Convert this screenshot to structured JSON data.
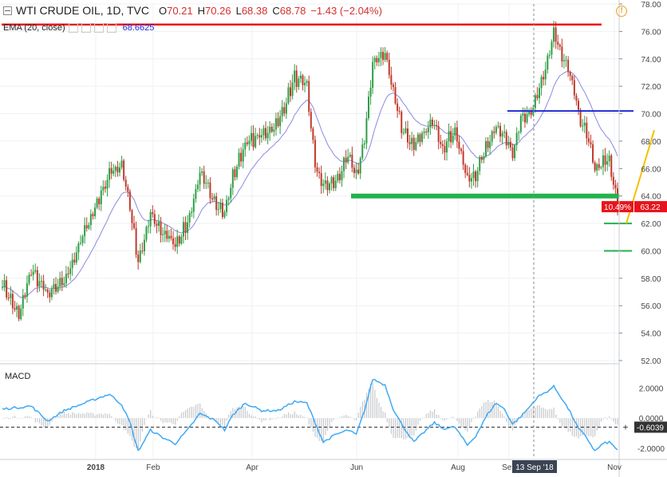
{
  "header": {
    "symbol": "WTI CRUDE OIL, 1D, TVC",
    "open_label": "O",
    "open": "70.21",
    "high_label": "H",
    "high": "70.26",
    "low_label": "L",
    "low": "68.38",
    "close_label": "C",
    "close": "68.78",
    "change": "−1.43 (−2.04%)"
  },
  "ema": {
    "label": "EMA (20, close)",
    "value": "68.6625"
  },
  "macd": {
    "label": "MACD"
  },
  "colors": {
    "up": "#2e9e44",
    "down": "#c0392b",
    "ema": "#8a8ae0",
    "macd": "#3fa9f5",
    "red_line": "#e8141b",
    "blue_line": "#1e2bd6",
    "green_line": "#22b24c",
    "yellow_line": "#f5c000",
    "percent_label": "#e8141b"
  },
  "icons": [
    "alert-icon",
    "collapse-icon"
  ],
  "crosshair_date": "13 Sep '18",
  "price_label": "63.22",
  "percent_label": "10.49%",
  "macd_value": "-0.6039",
  "chart_data": {
    "type": "candlestick",
    "title": "WTI CRUDE OIL, 1D, TVC",
    "x_ticks": [
      "2018",
      "Feb",
      "Apr",
      "Jun",
      "Aug",
      "Sep",
      "Nov"
    ],
    "y_ticks": [
      "52.00",
      "54.00",
      "56.00",
      "58.00",
      "60.00",
      "62.00",
      "64.00",
      "66.00",
      "68.00",
      "70.00",
      "72.00",
      "74.00",
      "76.00",
      "78.00"
    ],
    "ylim": [
      52,
      78
    ],
    "macd_ticks": [
      "2.0000",
      "0.0000",
      "-2.0000"
    ],
    "macd_ylim": [
      -2.7,
      3.3
    ],
    "waypoints": [
      [
        0,
        57.6
      ],
      [
        8,
        55.2
      ],
      [
        14,
        58.6
      ],
      [
        22,
        56.8
      ],
      [
        30,
        57.7
      ],
      [
        40,
        61.4
      ],
      [
        52,
        65.6
      ],
      [
        58,
        66.3
      ],
      [
        62,
        63.2
      ],
      [
        66,
        59.0
      ],
      [
        72,
        62.6
      ],
      [
        78,
        61.3
      ],
      [
        84,
        60.5
      ],
      [
        90,
        62.0
      ],
      [
        96,
        65.5
      ],
      [
        104,
        63.5
      ],
      [
        108,
        62.7
      ],
      [
        112,
        65.4
      ],
      [
        118,
        67.8
      ],
      [
        126,
        68.4
      ],
      [
        134,
        69.3
      ],
      [
        142,
        72.6
      ],
      [
        148,
        71.9
      ],
      [
        152,
        66.2
      ],
      [
        156,
        64.7
      ],
      [
        162,
        65.0
      ],
      [
        168,
        66.8
      ],
      [
        172,
        65.5
      ],
      [
        176,
        68.0
      ],
      [
        180,
        73.8
      ],
      [
        186,
        74.3
      ],
      [
        190,
        71.7
      ],
      [
        194,
        69.0
      ],
      [
        200,
        67.5
      ],
      [
        206,
        68.8
      ],
      [
        210,
        69.4
      ],
      [
        214,
        67.5
      ],
      [
        220,
        68.8
      ],
      [
        226,
        65.1
      ],
      [
        230,
        65.6
      ],
      [
        236,
        67.8
      ],
      [
        240,
        69.2
      ],
      [
        244,
        68.3
      ],
      [
        248,
        67.1
      ],
      [
        252,
        69.9
      ],
      [
        256,
        69.7
      ],
      [
        260,
        71.2
      ],
      [
        264,
        73.3
      ],
      [
        268,
        75.9
      ],
      [
        272,
        74.0
      ],
      [
        276,
        72.8
      ],
      [
        280,
        70.0
      ],
      [
        284,
        68.4
      ],
      [
        288,
        66.0
      ],
      [
        292,
        66.4
      ],
      [
        295,
        66.5
      ],
      [
        299,
        63.2
      ]
    ],
    "macd_waypoints": [
      [
        0,
        0.6
      ],
      [
        14,
        0.8
      ],
      [
        22,
        -0.2
      ],
      [
        30,
        0.5
      ],
      [
        40,
        1.0
      ],
      [
        52,
        1.6
      ],
      [
        58,
        0.9
      ],
      [
        62,
        -0.3
      ],
      [
        66,
        -2.2
      ],
      [
        72,
        -0.8
      ],
      [
        78,
        -1.3
      ],
      [
        84,
        -1.7
      ],
      [
        90,
        -0.8
      ],
      [
        96,
        0.3
      ],
      [
        104,
        -0.2
      ],
      [
        108,
        -0.8
      ],
      [
        112,
        0.2
      ],
      [
        118,
        1.0
      ],
      [
        126,
        0.5
      ],
      [
        134,
        0.5
      ],
      [
        142,
        1.1
      ],
      [
        148,
        1.0
      ],
      [
        152,
        -0.3
      ],
      [
        156,
        -1.6
      ],
      [
        162,
        -1.1
      ],
      [
        168,
        -0.8
      ],
      [
        172,
        -1.1
      ],
      [
        176,
        0.5
      ],
      [
        180,
        2.6
      ],
      [
        186,
        2.2
      ],
      [
        190,
        0.6
      ],
      [
        194,
        -0.4
      ],
      [
        200,
        -1.6
      ],
      [
        206,
        -0.8
      ],
      [
        210,
        -0.3
      ],
      [
        214,
        -0.7
      ],
      [
        220,
        -0.6
      ],
      [
        226,
        -1.8
      ],
      [
        230,
        -1.2
      ],
      [
        236,
        0.3
      ],
      [
        240,
        1.0
      ],
      [
        244,
        0.6
      ],
      [
        248,
        -0.4
      ],
      [
        252,
        0.1
      ],
      [
        256,
        0.7
      ],
      [
        260,
        1.4
      ],
      [
        264,
        1.7
      ],
      [
        268,
        2.1
      ],
      [
        272,
        1.3
      ],
      [
        276,
        0.4
      ],
      [
        280,
        -0.7
      ],
      [
        284,
        -1.3
      ],
      [
        288,
        -2.2
      ],
      [
        292,
        -1.7
      ],
      [
        295,
        -1.6
      ],
      [
        299,
        -2.1
      ]
    ],
    "levels": [
      {
        "name": "resistance",
        "value": 76.5
      },
      {
        "name": "mid",
        "value": 70.2
      },
      {
        "name": "support",
        "value": 64.0
      },
      {
        "name": "target-1",
        "value": 62.0
      },
      {
        "name": "target-2",
        "value": 60.0
      }
    ]
  }
}
